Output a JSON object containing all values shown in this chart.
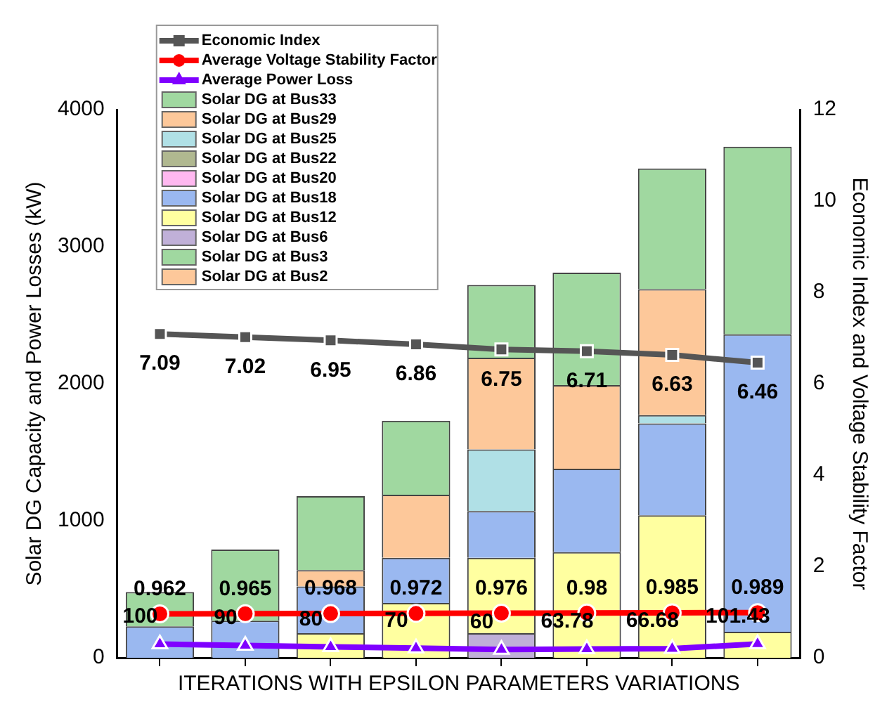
{
  "chart_data": {
    "type": "bar",
    "stacked": true,
    "xlabel": "ITERATIONS WITH EPSILON PARAMETERS VARIATIONS",
    "ylabel": "Solar DG Capacity and Power Losses (kW)",
    "y2label": "Economic Index and Voltage Stability Factor",
    "categories": [
      null,
      null,
      null,
      null,
      null,
      null,
      null,
      null
    ],
    "series": [
      {
        "name": "Solar DG at Bus2",
        "color": "#fdc89a",
        "values": [
          0,
          0,
          0,
          0,
          0,
          0,
          0,
          0
        ]
      },
      {
        "name": "Solar DG at Bus3",
        "color": "#a0d8a0",
        "values": [
          0,
          0,
          0,
          0,
          0,
          0,
          0,
          0
        ]
      },
      {
        "name": "Solar DG at Bus6",
        "color": "#c0b0d8",
        "values": [
          0,
          0,
          0,
          0,
          180,
          0,
          0,
          0
        ]
      },
      {
        "name": "Solar DG at Bus12",
        "color": "#ffffa0",
        "values": [
          0,
          0,
          180,
          400,
          550,
          770,
          1040,
          190
        ]
      },
      {
        "name": "Solar DG at Bus18",
        "color": "#9ab8f0",
        "values": [
          230,
          270,
          340,
          330,
          340,
          610,
          670,
          2170
        ]
      },
      {
        "name": "Solar DG at Bus20",
        "color": "#ffb8f0",
        "values": [
          0,
          0,
          0,
          0,
          0,
          0,
          0,
          0
        ]
      },
      {
        "name": "Solar DG at Bus22",
        "color": "#b0b890",
        "values": [
          0,
          0,
          0,
          0,
          0,
          0,
          0,
          0
        ]
      },
      {
        "name": "Solar DG at Bus25",
        "color": "#b0e0e6",
        "values": [
          0,
          0,
          0,
          0,
          450,
          0,
          60,
          0
        ]
      },
      {
        "name": "Solar DG at Bus29",
        "color": "#fdc89a",
        "values": [
          0,
          0,
          120,
          460,
          670,
          610,
          920,
          0
        ]
      },
      {
        "name": "Solar DG at Bus33",
        "color": "#a0d8a0",
        "values": [
          250,
          520,
          540,
          540,
          530,
          820,
          880,
          1370
        ]
      },
      {
        "name": "Average Power Loss",
        "type": "line",
        "color": "#7f00ff",
        "marker": "triangle",
        "values": [
          100,
          90,
          80,
          70,
          60,
          63.78,
          66.68,
          101.43
        ],
        "value_labels": [
          "100",
          "90",
          "80",
          "70",
          "60",
          "63.78",
          "66.68",
          "101.43"
        ]
      },
      {
        "name": "Average Voltage Stability Factor",
        "type": "line",
        "axis": "y2",
        "color": "#ff0000",
        "marker": "circle",
        "values": [
          0.962,
          0.965,
          0.968,
          0.972,
          0.976,
          0.98,
          0.985,
          0.989
        ],
        "value_labels": [
          "0.962",
          "0.965",
          "0.968",
          "0.972",
          "0.976",
          "0.98",
          "0.985",
          "0.989"
        ]
      },
      {
        "name": "Economic Index",
        "type": "line",
        "axis": "y2",
        "color": "#555555",
        "marker": "square",
        "values": [
          7.09,
          7.02,
          6.95,
          6.86,
          6.75,
          6.71,
          6.63,
          6.46
        ],
        "value_labels": [
          "7.09",
          "7.02",
          "6.95",
          "6.86",
          "6.75",
          "6.71",
          "6.63",
          "6.46"
        ]
      }
    ],
    "ylim": [
      0,
      4000
    ],
    "yticks": [
      0,
      1000,
      2000,
      3000,
      4000
    ],
    "y2lim": [
      0,
      12
    ],
    "y2ticks": [
      0,
      2,
      4,
      6,
      8,
      10,
      12
    ],
    "legend": "top left"
  }
}
